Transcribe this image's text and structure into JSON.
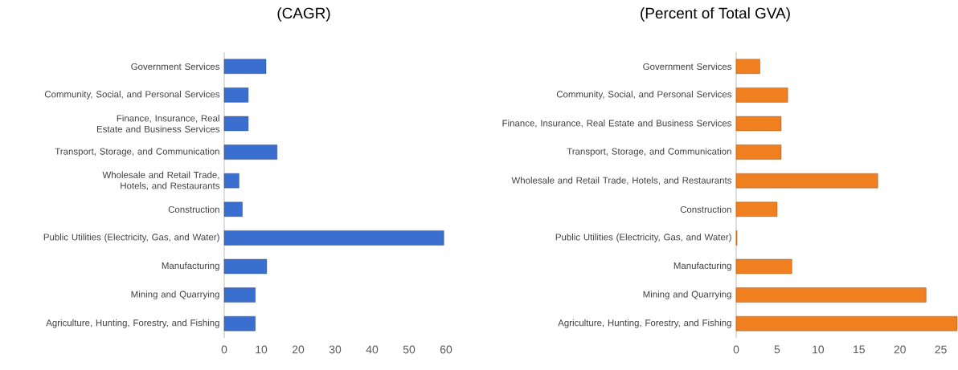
{
  "chart_data": [
    {
      "type": "bar",
      "orientation": "horizontal",
      "title": "(CAGR)",
      "categories": [
        "Government Services",
        "Community, Social, and Personal Services",
        "Finance, Insurance, Real Estate and Business Services",
        "Transport, Storage, and Communication",
        "Wholesale and Retail Trade, Hotels, and Restaurants",
        "Construction",
        "Public Utilities (Electricity, Gas, and Water)",
        "Manufacturing",
        "Mining and Quarrying",
        "Agriculture, Hunting, Forestry, and Fishing"
      ],
      "values": [
        11.3,
        6.5,
        6.5,
        14.3,
        4.0,
        4.9,
        59.4,
        11.5,
        8.4,
        8.4
      ],
      "color": "#3a6fd0",
      "xlim": [
        0,
        60
      ],
      "xticks": [
        0,
        10,
        20,
        30,
        40,
        50,
        60
      ]
    },
    {
      "type": "bar",
      "orientation": "horizontal",
      "title": "(Percent of Total GVA)",
      "categories": [
        "Government Services",
        "Community, Social, and Personal Services",
        "Finance, Insurance, Real Estate and Business Services",
        "Transport, Storage, and Communication",
        "Wholesale and Retail Trade, Hotels, and Restaurants",
        "Construction",
        "Public Utilities (Electricity, Gas, and Water)",
        "Manufacturing",
        "Mining and Quarrying",
        "Agriculture, Hunting, Forestry, and Fishing"
      ],
      "values": [
        2.9,
        6.3,
        5.5,
        5.5,
        17.3,
        5.0,
        0.1,
        6.8,
        23.2,
        27
      ],
      "color": "#f07f20",
      "xlim": [
        0,
        27
      ],
      "xticks": [
        0,
        5,
        10,
        15,
        20,
        25
      ]
    }
  ]
}
